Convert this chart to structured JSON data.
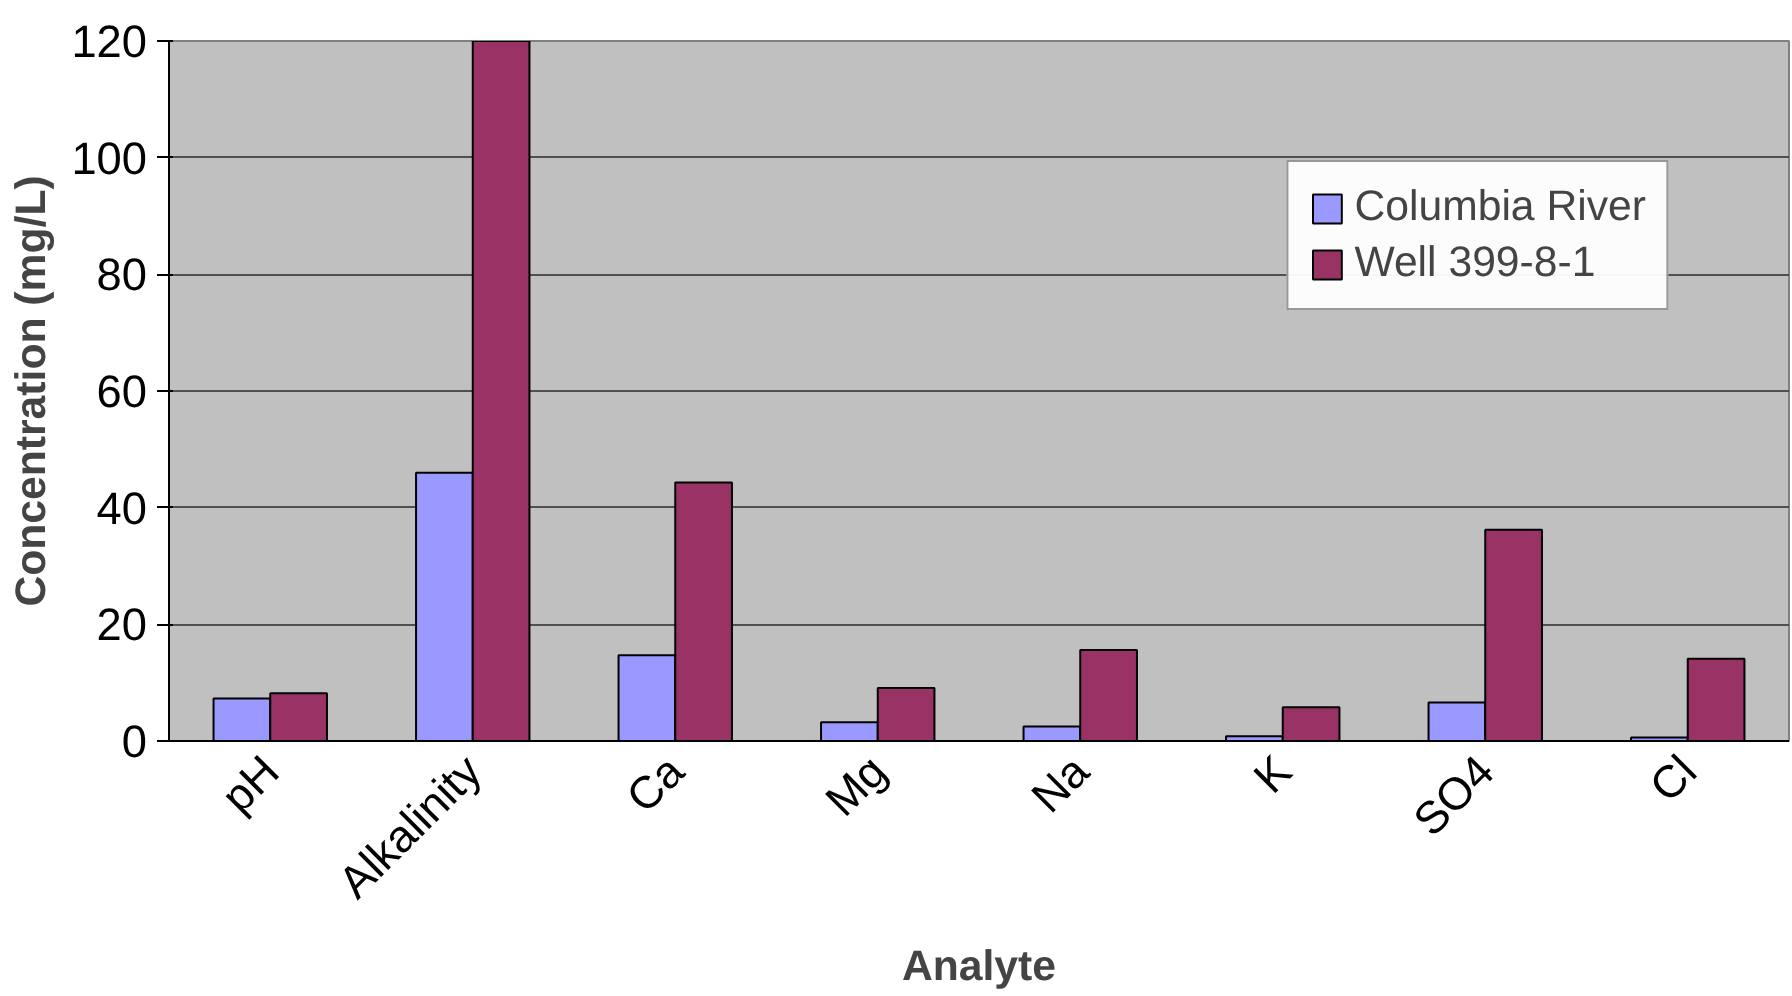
{
  "chart_data": {
    "type": "bar",
    "xlabel": "Analyte",
    "ylabel": "Concentration (mg/L)",
    "categories": [
      "pH",
      "Alkalinity",
      "Ca",
      "Mg",
      "Na",
      "K",
      "SO4",
      "Cl"
    ],
    "series": [
      {
        "name": "Columbia River",
        "color": "#9999ff",
        "values": [
          7.3,
          46,
          14.7,
          3.2,
          2.5,
          0.8,
          6.6,
          0.6
        ]
      },
      {
        "name": "Well 399-8-1",
        "color": "#993366",
        "values": [
          8.2,
          120,
          44.3,
          9.1,
          15.6,
          5.8,
          36.2,
          14.1
        ]
      }
    ],
    "ylim": [
      0,
      120
    ],
    "yticks": [
      0,
      20,
      40,
      60,
      80,
      100,
      120
    ],
    "grid": "y",
    "legend": "top right"
  }
}
